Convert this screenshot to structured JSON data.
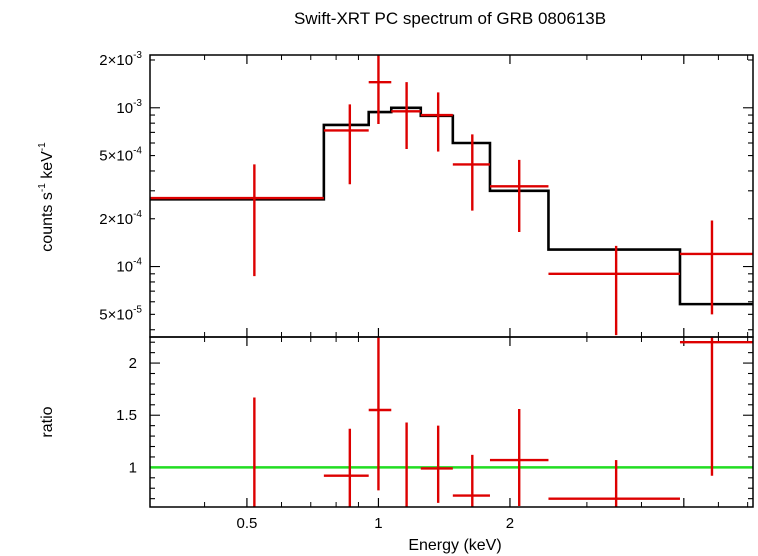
{
  "chart_data": [
    {
      "type": "scatter",
      "title": "Swift-XRT PC spectrum of GRB 080613B",
      "xlabel": "",
      "ylabel": "counts s-1 keV-1",
      "ylabel_parts": [
        "counts s",
        "-1",
        " keV",
        "-1"
      ],
      "xscale": "log",
      "yscale": "log",
      "xlim": [
        0.3,
        7.2
      ],
      "ylim": [
        3.6e-05,
        0.00215
      ],
      "yticks": [
        {
          "value": 0.002,
          "mantissa": "2×10",
          "exp": "-3"
        },
        {
          "value": 0.001,
          "mantissa": "10",
          "exp": "-3"
        },
        {
          "value": 0.0005,
          "mantissa": "5×10",
          "exp": "-4"
        },
        {
          "value": 0.0002,
          "mantissa": "2×10",
          "exp": "-4"
        },
        {
          "value": 0.0001,
          "mantissa": "10",
          "exp": "-4"
        },
        {
          "value": 5e-05,
          "mantissa": "5×10",
          "exp": "-5"
        }
      ],
      "data_color": "#dd0000",
      "model_color": "#000000",
      "data": [
        {
          "xlo": 0.3,
          "xhi": 0.75,
          "x": 0.52,
          "y": 0.00027,
          "ylo": 8.7e-05,
          "yhi": 0.00044
        },
        {
          "xlo": 0.75,
          "xhi": 0.95,
          "x": 0.86,
          "y": 0.00072,
          "ylo": 0.00033,
          "yhi": 0.00105
        },
        {
          "xlo": 0.95,
          "xhi": 1.07,
          "x": 1.0,
          "y": 0.00145,
          "ylo": 0.00079,
          "yhi": 0.0024
        },
        {
          "xlo": 1.07,
          "xhi": 1.25,
          "x": 1.16,
          "y": 0.00095,
          "ylo": 0.00055,
          "yhi": 0.00145
        },
        {
          "xlo": 1.25,
          "xhi": 1.48,
          "x": 1.37,
          "y": 0.0009,
          "ylo": 0.00053,
          "yhi": 0.00125
        },
        {
          "xlo": 1.48,
          "xhi": 1.8,
          "x": 1.64,
          "y": 0.00044,
          "ylo": 0.000225,
          "yhi": 0.00068
        },
        {
          "xlo": 1.8,
          "xhi": 2.45,
          "x": 2.1,
          "y": 0.00032,
          "ylo": 0.000165,
          "yhi": 0.00047
        },
        {
          "xlo": 2.45,
          "xhi": 4.9,
          "x": 3.5,
          "y": 9e-05,
          "ylo": 3.7e-05,
          "yhi": 0.000135
        },
        {
          "xlo": 4.9,
          "xhi": 7.2,
          "x": 5.8,
          "y": 0.00012,
          "ylo": 5e-05,
          "yhi": 0.000195
        }
      ],
      "model": [
        {
          "xlo": 0.3,
          "xhi": 0.75,
          "y": 0.000265
        },
        {
          "xlo": 0.75,
          "xhi": 0.95,
          "y": 0.00078
        },
        {
          "xlo": 0.95,
          "xhi": 1.07,
          "y": 0.00094
        },
        {
          "xlo": 1.07,
          "xhi": 1.25,
          "y": 0.001
        },
        {
          "xlo": 1.25,
          "xhi": 1.48,
          "y": 0.00089
        },
        {
          "xlo": 1.48,
          "xhi": 1.8,
          "y": 0.0006
        },
        {
          "xlo": 1.8,
          "xhi": 2.45,
          "y": 0.0003
        },
        {
          "xlo": 2.45,
          "xhi": 4.9,
          "y": 0.000128
        },
        {
          "xlo": 4.9,
          "xhi": 7.2,
          "y": 5.8e-05
        }
      ]
    },
    {
      "type": "scatter",
      "title": "",
      "xlabel": "Energy (keV)",
      "ylabel": "ratio",
      "xscale": "log",
      "yscale": "linear",
      "xlim": [
        0.3,
        7.2
      ],
      "ylim": [
        0.62,
        2.25
      ],
      "xticks": [
        {
          "value": 0.5,
          "label": "0.5"
        },
        {
          "value": 1,
          "label": "1"
        },
        {
          "value": 2,
          "label": "2"
        }
      ],
      "yticks": [
        {
          "value": 2,
          "label": "2"
        },
        {
          "value": 1.5,
          "label": "1.5"
        },
        {
          "value": 1,
          "label": "1"
        }
      ],
      "reference_line": {
        "y": 1,
        "color": "#22dd22"
      },
      "data_color": "#dd0000",
      "data": [
        {
          "xlo": 0.3,
          "xhi": 0.75,
          "x": 0.52,
          "y": 0.62,
          "ylo": 0.62,
          "yhi": 1.67
        },
        {
          "xlo": 0.75,
          "xhi": 0.95,
          "x": 0.86,
          "y": 0.92,
          "ylo": 0.62,
          "yhi": 1.37
        },
        {
          "xlo": 0.95,
          "xhi": 1.07,
          "x": 1.0,
          "y": 1.55,
          "ylo": 0.78,
          "yhi": 2.25
        },
        {
          "xlo": 1.07,
          "xhi": 1.25,
          "x": 1.16,
          "y": 0.62,
          "ylo": 0.62,
          "yhi": 1.43
        },
        {
          "xlo": 1.25,
          "xhi": 1.48,
          "x": 1.37,
          "y": 0.99,
          "ylo": 0.66,
          "yhi": 1.4
        },
        {
          "xlo": 1.48,
          "xhi": 1.8,
          "x": 1.64,
          "y": 0.73,
          "ylo": 0.62,
          "yhi": 1.12
        },
        {
          "xlo": 1.8,
          "xhi": 2.45,
          "x": 2.1,
          "y": 1.07,
          "ylo": 0.63,
          "yhi": 1.56
        },
        {
          "xlo": 2.45,
          "xhi": 4.9,
          "x": 3.5,
          "y": 0.7,
          "ylo": 0.62,
          "yhi": 1.07
        },
        {
          "xlo": 4.9,
          "xhi": 7.2,
          "x": 5.8,
          "y": 2.2,
          "ylo": 0.92,
          "yhi": 2.25
        }
      ]
    }
  ]
}
